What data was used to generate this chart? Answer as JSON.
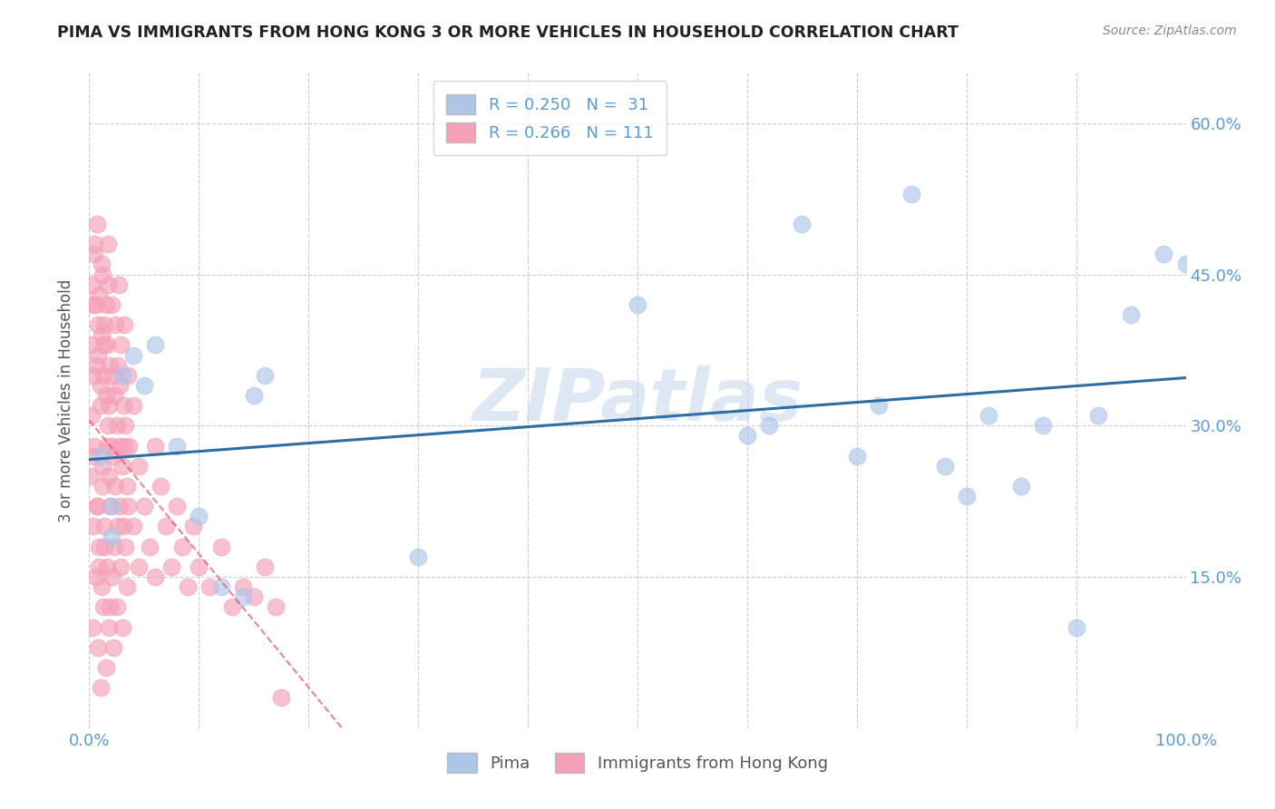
{
  "title": "PIMA VS IMMIGRANTS FROM HONG KONG 3 OR MORE VEHICLES IN HOUSEHOLD CORRELATION CHART",
  "source": "Source: ZipAtlas.com",
  "ylabel": "3 or more Vehicles in Household",
  "xlim": [
    0.0,
    1.0
  ],
  "ylim": [
    0.0,
    0.65
  ],
  "yticks": [
    0.15,
    0.3,
    0.45,
    0.6
  ],
  "ytick_labels": [
    "15.0%",
    "30.0%",
    "45.0%",
    "60.0%"
  ],
  "xtick_positions": [
    0.0,
    0.1,
    0.2,
    0.3,
    0.4,
    0.5,
    0.6,
    0.7,
    0.8,
    0.9,
    1.0
  ],
  "xtick_labels": [
    "0.0%",
    "",
    "",
    "",
    "",
    "",
    "",
    "",
    "",
    "",
    "100.0%"
  ],
  "pima_color": "#adc6e8",
  "hk_color": "#f5a0b8",
  "pima_R": 0.25,
  "pima_N": 31,
  "hk_R": 0.266,
  "hk_N": 111,
  "pima_x": [
    0.01,
    0.02,
    0.02,
    0.03,
    0.04,
    0.05,
    0.06,
    0.08,
    0.1,
    0.12,
    0.14,
    0.15,
    0.16,
    0.3,
    0.5,
    0.6,
    0.62,
    0.65,
    0.7,
    0.72,
    0.75,
    0.78,
    0.8,
    0.82,
    0.85,
    0.87,
    0.9,
    0.92,
    0.95,
    0.98,
    1.0
  ],
  "pima_y": [
    0.27,
    0.22,
    0.19,
    0.35,
    0.37,
    0.34,
    0.38,
    0.28,
    0.21,
    0.14,
    0.13,
    0.33,
    0.35,
    0.17,
    0.42,
    0.29,
    0.3,
    0.5,
    0.27,
    0.32,
    0.53,
    0.26,
    0.23,
    0.31,
    0.24,
    0.3,
    0.1,
    0.31,
    0.41,
    0.47,
    0.46
  ],
  "hk_x": [
    0.001,
    0.002,
    0.003,
    0.003,
    0.004,
    0.004,
    0.005,
    0.005,
    0.006,
    0.006,
    0.007,
    0.007,
    0.008,
    0.008,
    0.009,
    0.009,
    0.01,
    0.01,
    0.011,
    0.011,
    0.012,
    0.012,
    0.013,
    0.013,
    0.014,
    0.014,
    0.015,
    0.015,
    0.016,
    0.016,
    0.017,
    0.017,
    0.018,
    0.018,
    0.019,
    0.019,
    0.02,
    0.02,
    0.021,
    0.021,
    0.022,
    0.022,
    0.023,
    0.023,
    0.024,
    0.024,
    0.025,
    0.025,
    0.026,
    0.026,
    0.027,
    0.027,
    0.028,
    0.028,
    0.029,
    0.029,
    0.03,
    0.03,
    0.031,
    0.031,
    0.032,
    0.032,
    0.033,
    0.033,
    0.034,
    0.034,
    0.035,
    0.035,
    0.036,
    0.04,
    0.04,
    0.045,
    0.045,
    0.05,
    0.055,
    0.06,
    0.06,
    0.065,
    0.07,
    0.075,
    0.08,
    0.085,
    0.09,
    0.095,
    0.1,
    0.11,
    0.12,
    0.13,
    0.14,
    0.15,
    0.16,
    0.17,
    0.175,
    0.002,
    0.003,
    0.004,
    0.005,
    0.006,
    0.007,
    0.008,
    0.009,
    0.01,
    0.011,
    0.012,
    0.013,
    0.014,
    0.015,
    0.016,
    0.017,
    0.018,
    0.019
  ],
  "hk_y": [
    0.25,
    0.38,
    0.1,
    0.44,
    0.35,
    0.2,
    0.47,
    0.28,
    0.42,
    0.15,
    0.5,
    0.22,
    0.37,
    0.08,
    0.43,
    0.18,
    0.32,
    0.04,
    0.39,
    0.14,
    0.45,
    0.26,
    0.35,
    0.12,
    0.4,
    0.2,
    0.33,
    0.06,
    0.38,
    0.16,
    0.3,
    0.48,
    0.25,
    0.1,
    0.36,
    0.22,
    0.28,
    0.42,
    0.15,
    0.35,
    0.27,
    0.08,
    0.33,
    0.18,
    0.4,
    0.24,
    0.3,
    0.12,
    0.36,
    0.2,
    0.28,
    0.44,
    0.22,
    0.34,
    0.16,
    0.38,
    0.26,
    0.1,
    0.32,
    0.2,
    0.28,
    0.4,
    0.18,
    0.3,
    0.24,
    0.14,
    0.35,
    0.22,
    0.28,
    0.2,
    0.32,
    0.16,
    0.26,
    0.22,
    0.18,
    0.28,
    0.15,
    0.24,
    0.2,
    0.16,
    0.22,
    0.18,
    0.14,
    0.2,
    0.16,
    0.14,
    0.18,
    0.12,
    0.14,
    0.13,
    0.16,
    0.12,
    0.03,
    0.31,
    0.42,
    0.27,
    0.48,
    0.36,
    0.22,
    0.4,
    0.16,
    0.34,
    0.46,
    0.24,
    0.38,
    0.18,
    0.42,
    0.28,
    0.44,
    0.32,
    0.12
  ],
  "pima_line_color": "#2e6da4",
  "hk_line_color": "#e05070",
  "watermark": "ZIPatlas",
  "watermark_color": "#c8d8ee",
  "title_color": "#222222",
  "axis_label_color": "#5b9bd5",
  "ylabel_color": "#555555"
}
